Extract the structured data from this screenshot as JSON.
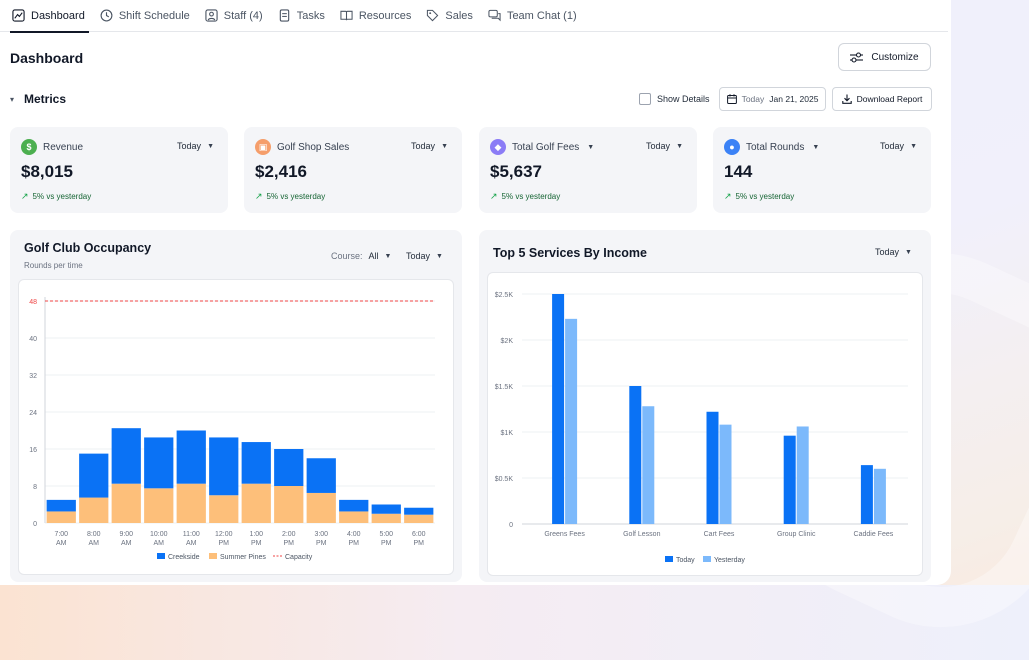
{
  "tabs": [
    {
      "label": "Dashboard",
      "icon": "chart-line-icon",
      "active": true
    },
    {
      "label": "Shift Schedule",
      "icon": "clock-icon"
    },
    {
      "label": "Staff (4)",
      "icon": "user-square-icon"
    },
    {
      "label": "Tasks",
      "icon": "document-icon"
    },
    {
      "label": "Resources",
      "icon": "book-icon"
    },
    {
      "label": "Sales",
      "icon": "tag-icon"
    },
    {
      "label": "Team Chat (1)",
      "icon": "chat-icon"
    }
  ],
  "header": {
    "title": "Dashboard",
    "customize_label": "Customize"
  },
  "metrics_bar": {
    "title": "Metrics",
    "show_details_label": "Show Details",
    "date_prefix": "Today",
    "date_value": "Jan 21, 2025",
    "download_label": "Download Report"
  },
  "cards": [
    {
      "label": "Revenue",
      "value": "$8,015",
      "period": "Today",
      "trend": "5% vs yesterday",
      "icon": "dollar-icon",
      "color": "#4caf50"
    },
    {
      "label": "Golf Shop Sales",
      "value": "$2,416",
      "period": "Today",
      "trend": "5% vs yesterday",
      "icon": "shopping-bag-icon",
      "color": "#f59e6b"
    },
    {
      "label": "Total Golf Fees",
      "value": "$5,637",
      "period": "Today",
      "trend": "5% vs yesterday",
      "icon": "tag-icon",
      "color": "#8b7cf6"
    },
    {
      "label": "Total Rounds",
      "value": "144",
      "period": "Today",
      "trend": "5% vs yesterday",
      "icon": "user-circle-icon",
      "color": "#3b82f6"
    }
  ],
  "occupancy": {
    "title": "Golf Club Occupancy",
    "subtitle": "Rounds per time",
    "course_label": "Course:",
    "course_value": "All",
    "period": "Today"
  },
  "services": {
    "title": "Top 5 Services By Income",
    "period": "Today"
  },
  "colors": {
    "creekside": "#0a72f5",
    "summer_pines": "#fdbf7a",
    "capacity": "#ef4444",
    "today": "#0a72f5",
    "yesterday": "#7cb9fb"
  },
  "chart_data": [
    {
      "type": "bar",
      "stacked": true,
      "categories": [
        "7:00\nAM",
        "8:00\nAM",
        "9:00\nAM",
        "10:00\nAM",
        "11:00\nAM",
        "12:00\nPM",
        "1:00\nPM",
        "2:00\nPM",
        "3:00\nPM",
        "4:00\nPM",
        "5:00\nPM",
        "6:00\nPM"
      ],
      "series": [
        {
          "name": "Creekside",
          "values": [
            2.5,
            9.5,
            12,
            11,
            11.5,
            12.5,
            9,
            8,
            7.5,
            2.5,
            2,
            1.5
          ]
        },
        {
          "name": "Summer Pines",
          "values": [
            2.5,
            5.5,
            8.5,
            7.5,
            8.5,
            6,
            8.5,
            8,
            6.5,
            2.5,
            2,
            1.8
          ]
        }
      ],
      "capacity": {
        "name": "Capacity",
        "value": 48
      },
      "yticks": [
        0,
        8,
        16,
        24,
        32,
        40,
        48
      ],
      "ylim": [
        0,
        48
      ],
      "grid": true,
      "legend": "bottom"
    },
    {
      "type": "bar",
      "categories": [
        "Greens Fees",
        "Golf Lesson",
        "Cart Fees",
        "Group Clinic",
        "Caddie Fees"
      ],
      "series": [
        {
          "name": "Today",
          "values": [
            2500,
            1500,
            1220,
            960,
            640
          ]
        },
        {
          "name": "Yesterday",
          "values": [
            2230,
            1280,
            1080,
            1060,
            600
          ]
        }
      ],
      "yticks": [
        "0",
        "$0.5K",
        "$1K",
        "$1.5K",
        "$2K",
        "$2.5K"
      ],
      "ylim": [
        0,
        2500
      ],
      "grid": true,
      "legend": "bottom"
    }
  ]
}
